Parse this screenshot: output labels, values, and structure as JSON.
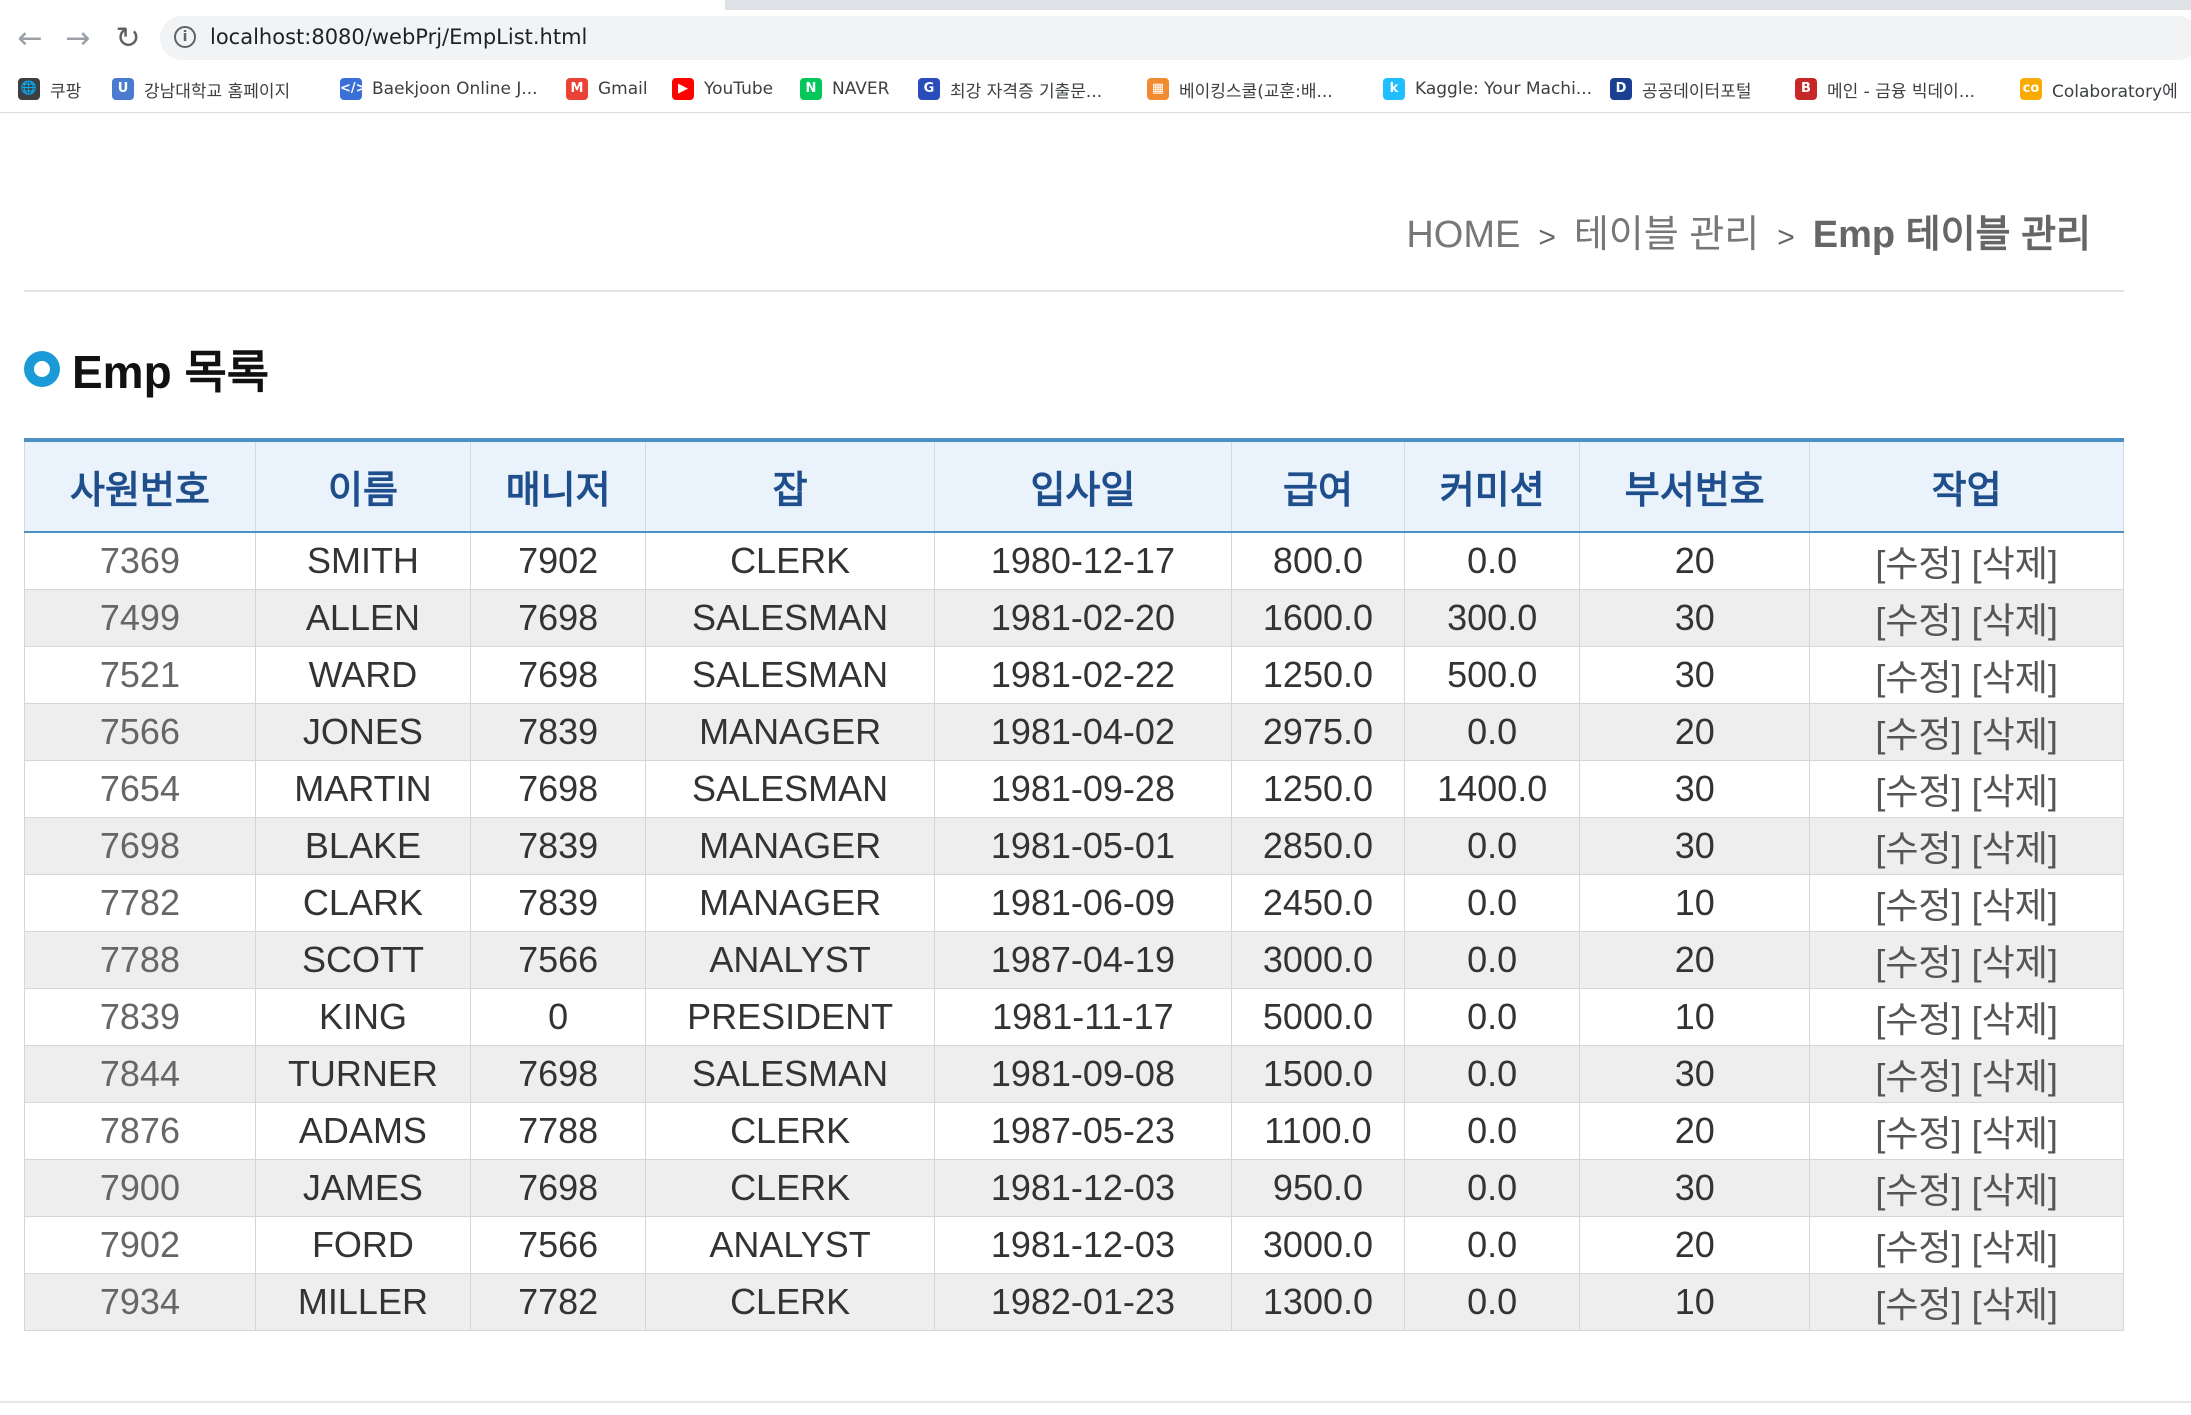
{
  "browser": {
    "url": "localhost:8080/webPrj/EmpList.html",
    "bookmarks": [
      {
        "label": "쿠팡",
        "icon": "globe-icon",
        "color": "#3c4043"
      },
      {
        "label": "강남대학교 홈페이지",
        "icon": "university-icon",
        "color": "#4a7bd0"
      },
      {
        "label": "Baekjoon Online J...",
        "icon": "code-icon",
        "color": "#3b6fd8"
      },
      {
        "label": "Gmail",
        "icon": "gmail-icon",
        "color": "#ea4335"
      },
      {
        "label": "YouTube",
        "icon": "youtube-icon",
        "color": "#ff0000"
      },
      {
        "label": "NAVER",
        "icon": "naver-icon",
        "color": "#03c75a"
      },
      {
        "label": "최강 자격증 기출문...",
        "icon": "gsc-icon",
        "color": "#2a4dbb"
      },
      {
        "label": "베이킹스쿨(교훈:배...",
        "icon": "bakery-icon",
        "color": "#f28b2f"
      },
      {
        "label": "Kaggle: Your Machi...",
        "icon": "kaggle-icon",
        "color": "#20beff"
      },
      {
        "label": "공공데이터포털",
        "icon": "data-portal-icon",
        "color": "#1b3f91"
      },
      {
        "label": "메인 - 금융 빅데이...",
        "icon": "finance-icon",
        "color": "#c62828"
      },
      {
        "label": "Colaboratory에",
        "icon": "colab-icon",
        "color": "#f9ab00"
      }
    ]
  },
  "breadcrumb": {
    "home": "HOME",
    "level1": "테이블 관리",
    "current": "Emp 테이블 관리",
    "separator": ">"
  },
  "section_title": "Emp 목록",
  "table": {
    "headers": [
      "사원번호",
      "이름",
      "매니저",
      "잡",
      "입사일",
      "급여",
      "커미션",
      "부서번호",
      "작업"
    ],
    "edit_label": "[수정]",
    "delete_label": "[삭제]",
    "rows": [
      [
        "7369",
        "SMITH",
        "7902",
        "CLERK",
        "1980-12-17",
        "800.0",
        "0.0",
        "20"
      ],
      [
        "7499",
        "ALLEN",
        "7698",
        "SALESMAN",
        "1981-02-20",
        "1600.0",
        "300.0",
        "30"
      ],
      [
        "7521",
        "WARD",
        "7698",
        "SALESMAN",
        "1981-02-22",
        "1250.0",
        "500.0",
        "30"
      ],
      [
        "7566",
        "JONES",
        "7839",
        "MANAGER",
        "1981-04-02",
        "2975.0",
        "0.0",
        "20"
      ],
      [
        "7654",
        "MARTIN",
        "7698",
        "SALESMAN",
        "1981-09-28",
        "1250.0",
        "1400.0",
        "30"
      ],
      [
        "7698",
        "BLAKE",
        "7839",
        "MANAGER",
        "1981-05-01",
        "2850.0",
        "0.0",
        "30"
      ],
      [
        "7782",
        "CLARK",
        "7839",
        "MANAGER",
        "1981-06-09",
        "2450.0",
        "0.0",
        "10"
      ],
      [
        "7788",
        "SCOTT",
        "7566",
        "ANALYST",
        "1987-04-19",
        "3000.0",
        "0.0",
        "20"
      ],
      [
        "7839",
        "KING",
        "0",
        "PRESIDENT",
        "1981-11-17",
        "5000.0",
        "0.0",
        "10"
      ],
      [
        "7844",
        "TURNER",
        "7698",
        "SALESMAN",
        "1981-09-08",
        "1500.0",
        "0.0",
        "30"
      ],
      [
        "7876",
        "ADAMS",
        "7788",
        "CLERK",
        "1987-05-23",
        "1100.0",
        "0.0",
        "20"
      ],
      [
        "7900",
        "JAMES",
        "7698",
        "CLERK",
        "1981-12-03",
        "950.0",
        "0.0",
        "30"
      ],
      [
        "7902",
        "FORD",
        "7566",
        "ANALYST",
        "1981-12-03",
        "3000.0",
        "0.0",
        "20"
      ],
      [
        "7934",
        "MILLER",
        "7782",
        "CLERK",
        "1982-01-23",
        "1300.0",
        "0.0",
        "10"
      ]
    ]
  }
}
